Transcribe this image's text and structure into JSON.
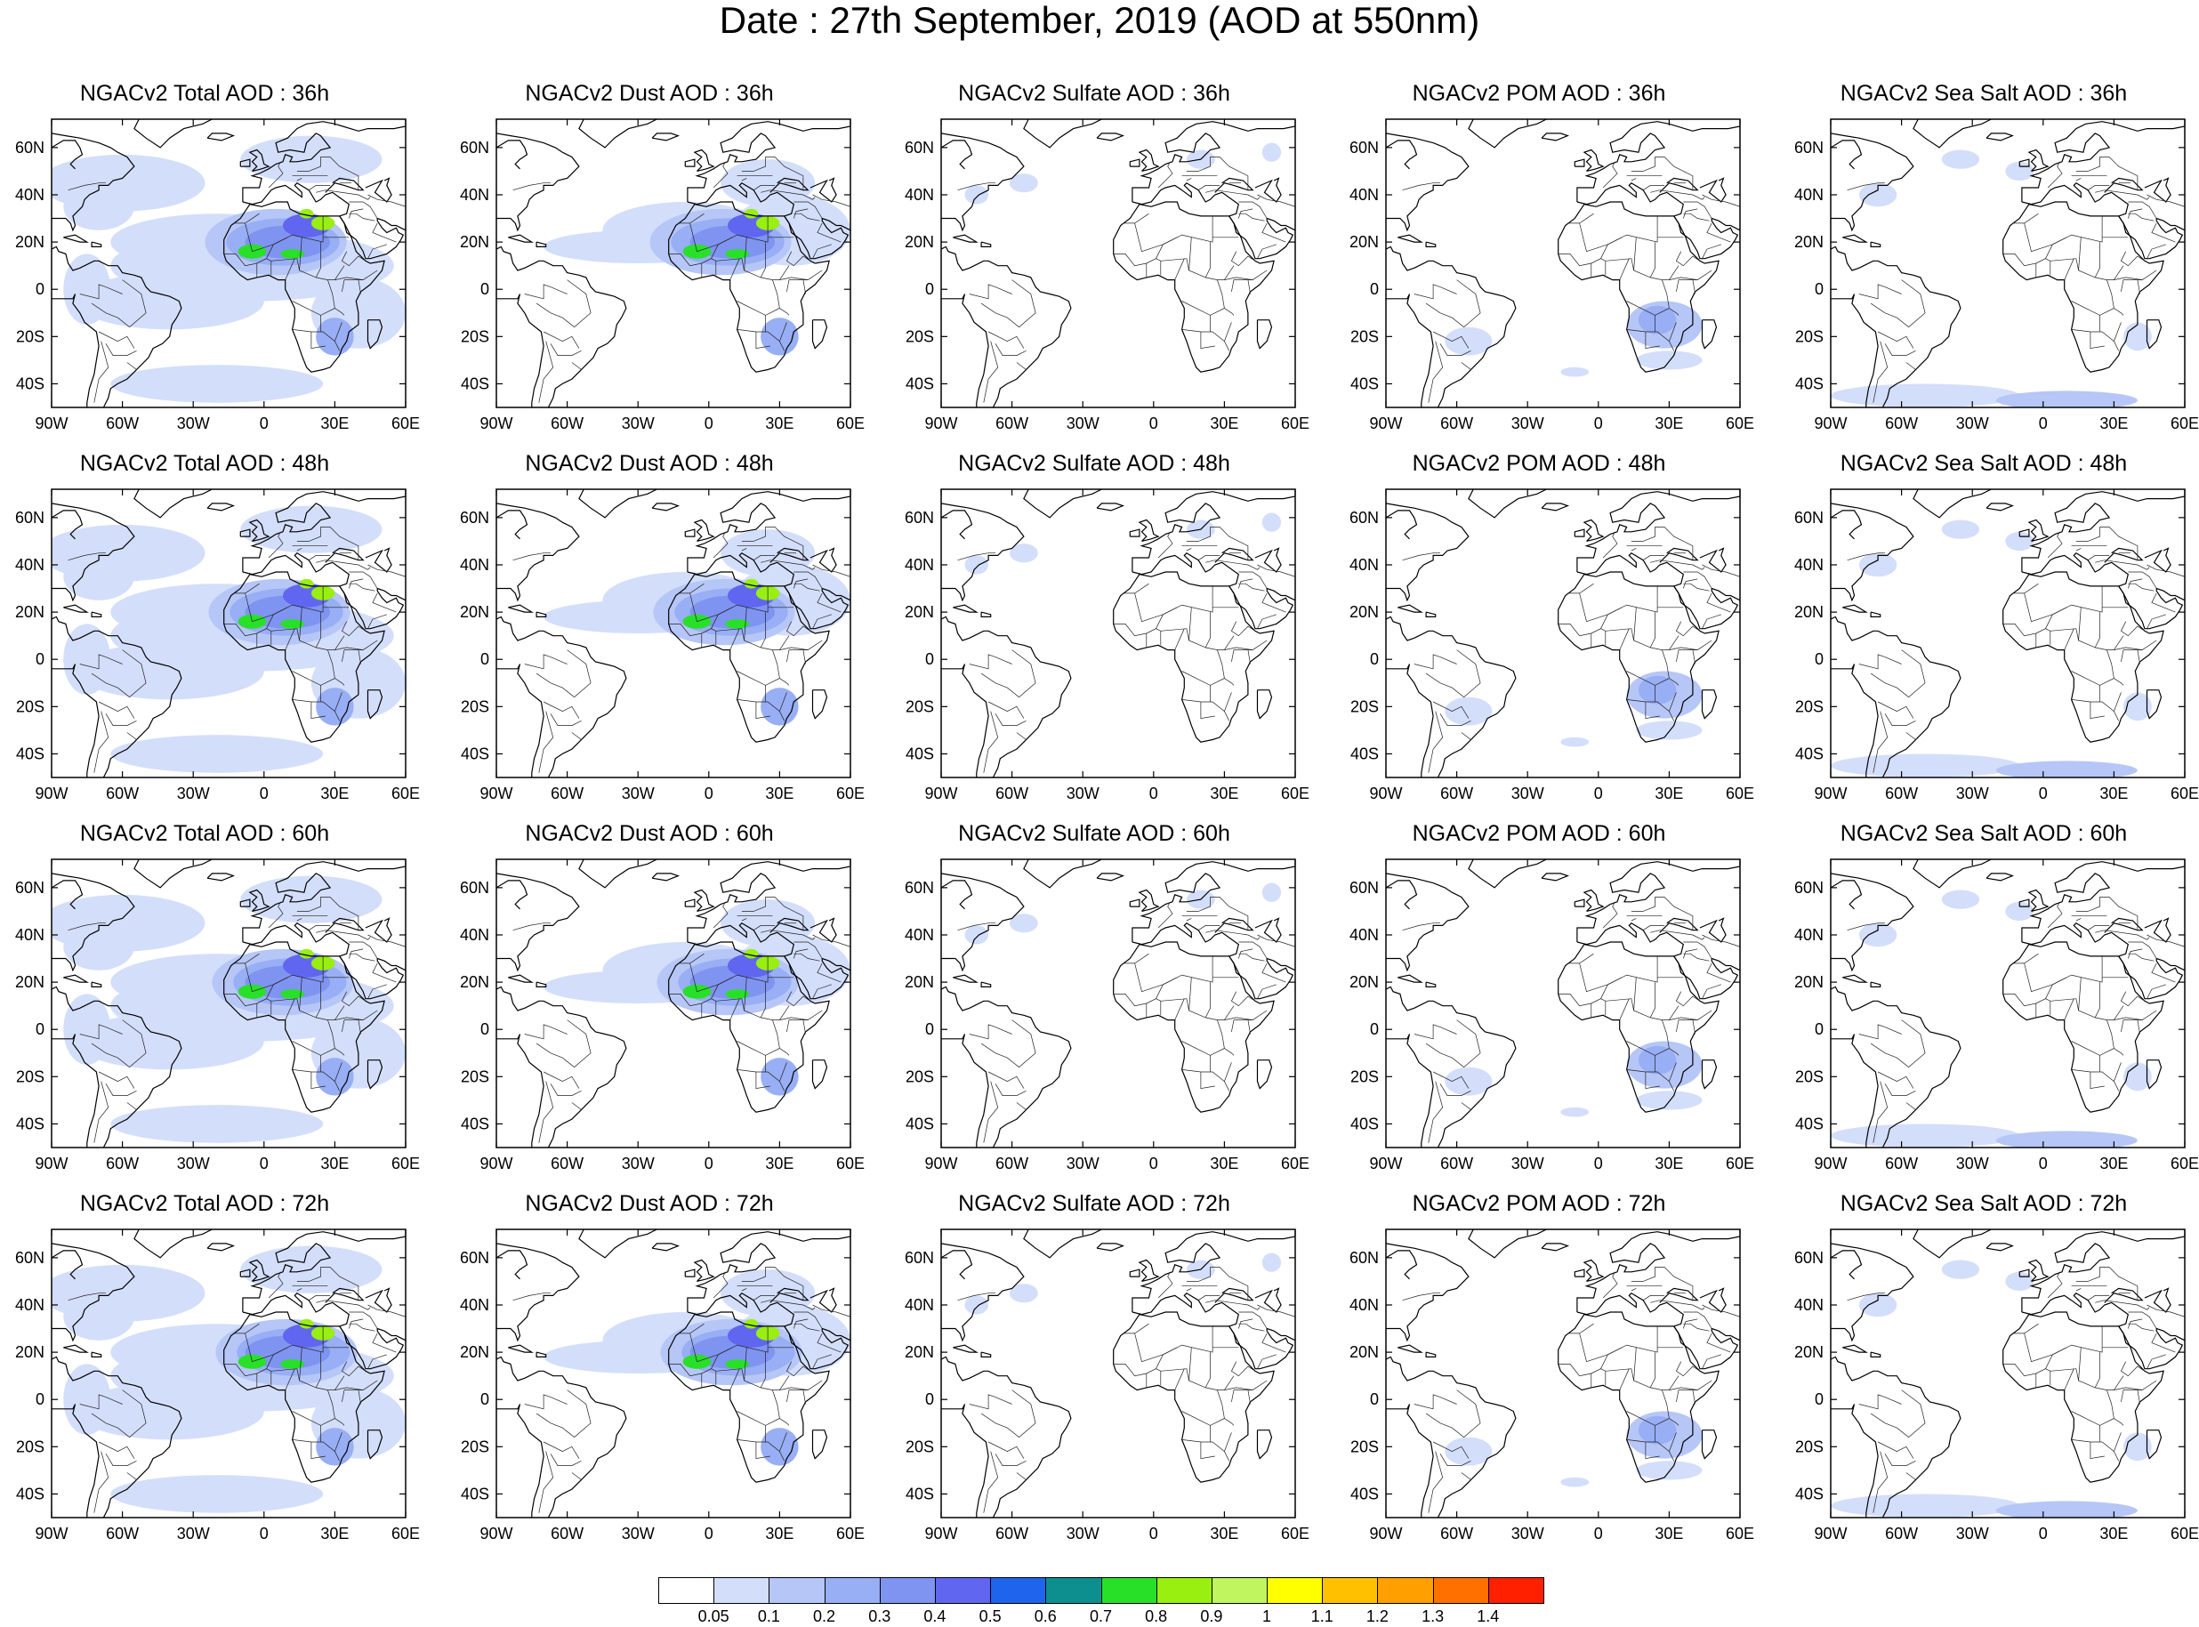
{
  "header": {
    "title": "Date : 27th September, 2019 (AOD at 550nm)"
  },
  "map": {
    "lon_ticks": [
      "90W",
      "60W",
      "30W",
      "0",
      "30E",
      "60E"
    ],
    "lat_ticks": [
      "60N",
      "40N",
      "20N",
      "0",
      "20S",
      "40S"
    ],
    "lon_range": [
      -90,
      60
    ],
    "lat_range": [
      -50,
      72
    ]
  },
  "panels": [
    [
      {
        "title": "NGACv2 Total AOD : 36h",
        "species": "total"
      },
      {
        "title": "NGACv2 Dust AOD : 36h",
        "species": "dust"
      },
      {
        "title": "NGACv2 Sulfate AOD : 36h",
        "species": "sulfate"
      },
      {
        "title": "NGACv2 POM AOD : 36h",
        "species": "pom"
      },
      {
        "title": "NGACv2 Sea Salt AOD : 36h",
        "species": "seasalt"
      }
    ],
    [
      {
        "title": "NGACv2 Total AOD : 48h",
        "species": "total"
      },
      {
        "title": "NGACv2 Dust AOD : 48h",
        "species": "dust"
      },
      {
        "title": "NGACv2 Sulfate AOD : 48h",
        "species": "sulfate"
      },
      {
        "title": "NGACv2 POM AOD : 48h",
        "species": "pom"
      },
      {
        "title": "NGACv2 Sea Salt AOD : 48h",
        "species": "seasalt"
      }
    ],
    [
      {
        "title": "NGACv2 Total AOD : 60h",
        "species": "total"
      },
      {
        "title": "NGACv2 Dust AOD : 60h",
        "species": "dust"
      },
      {
        "title": "NGACv2 Sulfate AOD : 60h",
        "species": "sulfate"
      },
      {
        "title": "NGACv2 POM AOD : 60h",
        "species": "pom"
      },
      {
        "title": "NGACv2 Sea Salt AOD : 60h",
        "species": "seasalt"
      }
    ],
    [
      {
        "title": "NGACv2 Total AOD : 72h",
        "species": "total"
      },
      {
        "title": "NGACv2 Dust AOD : 72h",
        "species": "dust"
      },
      {
        "title": "NGACv2 Sulfate AOD : 72h",
        "species": "sulfate"
      },
      {
        "title": "NGACv2 POM AOD : 72h",
        "species": "pom"
      },
      {
        "title": "NGACv2 Sea Salt  AOD : 72h",
        "species": "seasalt"
      }
    ]
  ],
  "colorbar": {
    "labels": [
      "0.05",
      "0.1",
      "0.2",
      "0.3",
      "0.4",
      "0.5",
      "0.6",
      "0.7",
      "0.8",
      "0.9",
      "1",
      "1.1",
      "1.2",
      "1.3",
      "1.4"
    ],
    "colors": [
      "#ffffff",
      "#d3defa",
      "#b6c6f7",
      "#98aef5",
      "#7f94f1",
      "#6066ef",
      "#1e64ec",
      "#0d8f8f",
      "#28e028",
      "#98ef10",
      "#c0f560",
      "#ffff00",
      "#ffc000",
      "#ffa000",
      "#ff7000",
      "#ff2000"
    ]
  }
}
